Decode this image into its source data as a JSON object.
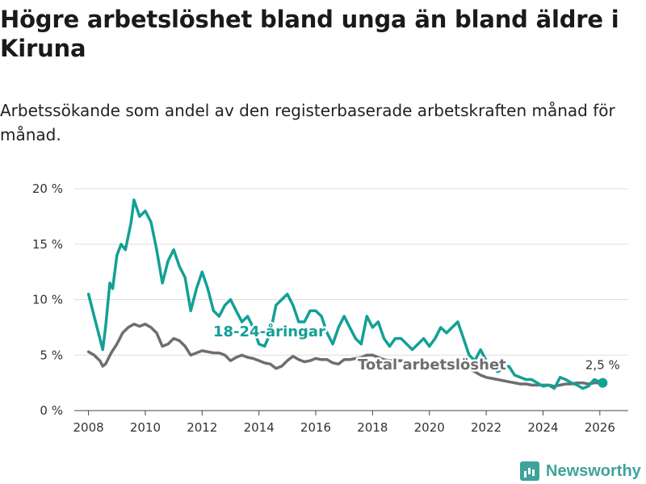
{
  "title": "Högre arbetslöshet bland unga än bland äldre i Kiruna",
  "subtitle": "Arbetssökande som andel av den registerbaserade arbetskraften månad för månad.",
  "brand": "Newsworthy",
  "colors": {
    "youth": "#13a096",
    "total": "#6e6e70",
    "grid": "#dddddd",
    "axis": "#444444"
  },
  "chart_data": {
    "type": "line",
    "title": "Högre arbetslöshet bland unga än bland äldre i Kiruna",
    "xlabel": "",
    "ylabel": "",
    "xlim": [
      2007.5,
      2027
    ],
    "ylim": [
      0,
      20
    ],
    "x_ticks": [
      2008,
      2010,
      2012,
      2014,
      2016,
      2018,
      2020,
      2022,
      2024,
      2026
    ],
    "x_tick_labels": [
      "2008",
      "2010",
      "2012",
      "2014",
      "2016",
      "2018",
      "2020",
      "2022",
      "2024",
      "2026"
    ],
    "y_ticks": [
      0,
      5,
      10,
      15,
      20
    ],
    "y_tick_labels": [
      "0 %",
      "5 %",
      "10 %",
      "15 %",
      "20 %"
    ],
    "end_label": "2,5 %",
    "series": [
      {
        "name": "18-24-åringar",
        "color": "#13a096",
        "x": [
          2008.0,
          2008.2,
          2008.4,
          2008.5,
          2008.6,
          2008.75,
          2008.85,
          2009.0,
          2009.15,
          2009.3,
          2009.5,
          2009.6,
          2009.8,
          2010.0,
          2010.2,
          2010.4,
          2010.6,
          2010.8,
          2011.0,
          2011.2,
          2011.4,
          2011.6,
          2011.8,
          2012.0,
          2012.2,
          2012.4,
          2012.6,
          2012.8,
          2013.0,
          2013.2,
          2013.4,
          2013.6,
          2013.8,
          2014.0,
          2014.2,
          2014.4,
          2014.6,
          2014.8,
          2015.0,
          2015.2,
          2015.4,
          2015.6,
          2015.8,
          2016.0,
          2016.2,
          2016.4,
          2016.6,
          2016.8,
          2017.0,
          2017.2,
          2017.4,
          2017.6,
          2017.8,
          2018.0,
          2018.2,
          2018.4,
          2018.6,
          2018.8,
          2019.0,
          2019.2,
          2019.4,
          2019.6,
          2019.8,
          2020.0,
          2020.2,
          2020.4,
          2020.6,
          2020.8,
          2021.0,
          2021.2,
          2021.4,
          2021.6,
          2021.8,
          2022.0,
          2022.2,
          2022.4,
          2022.6,
          2022.8,
          2023.0,
          2023.2,
          2023.4,
          2023.6,
          2023.8,
          2024.0,
          2024.2,
          2024.4,
          2024.6,
          2024.8,
          2025.0,
          2025.2,
          2025.4,
          2025.6,
          2025.8,
          2026.0,
          2026.1
        ],
        "values": [
          10.5,
          8.5,
          6.5,
          5.5,
          7.5,
          11.5,
          11.0,
          14.0,
          15.0,
          14.5,
          17.0,
          19.0,
          17.5,
          18.0,
          17.0,
          14.5,
          11.5,
          13.5,
          14.5,
          13.0,
          12.0,
          9.0,
          11.0,
          12.5,
          11.0,
          9.0,
          8.5,
          9.5,
          10.0,
          9.0,
          8.0,
          8.5,
          7.5,
          6.0,
          5.8,
          7.0,
          9.5,
          10.0,
          10.5,
          9.5,
          8.0,
          8.0,
          9.0,
          9.0,
          8.5,
          7.0,
          6.0,
          7.5,
          8.5,
          7.5,
          6.5,
          6.0,
          8.5,
          7.5,
          8.0,
          6.5,
          5.8,
          6.5,
          6.5,
          6.0,
          5.5,
          6.0,
          6.5,
          5.8,
          6.5,
          7.5,
          7.0,
          7.5,
          8.0,
          6.5,
          5.0,
          4.5,
          5.5,
          4.5,
          4.0,
          3.5,
          3.8,
          4.0,
          3.2,
          3.0,
          2.8,
          2.8,
          2.5,
          2.2,
          2.3,
          2.0,
          3.0,
          2.8,
          2.5,
          2.3,
          2.0,
          2.2,
          2.8,
          2.6,
          2.5
        ]
      },
      {
        "name": "Total arbetslöshet",
        "color": "#6e6e70",
        "x": [
          2008.0,
          2008.2,
          2008.4,
          2008.5,
          2008.6,
          2008.8,
          2009.0,
          2009.2,
          2009.4,
          2009.6,
          2009.8,
          2010.0,
          2010.2,
          2010.4,
          2010.6,
          2010.8,
          2011.0,
          2011.2,
          2011.4,
          2011.6,
          2011.8,
          2012.0,
          2012.2,
          2012.4,
          2012.6,
          2012.8,
          2013.0,
          2013.2,
          2013.4,
          2013.6,
          2013.8,
          2014.0,
          2014.2,
          2014.4,
          2014.6,
          2014.8,
          2015.0,
          2015.2,
          2015.4,
          2015.6,
          2015.8,
          2016.0,
          2016.2,
          2016.4,
          2016.6,
          2016.8,
          2017.0,
          2017.2,
          2017.4,
          2017.6,
          2017.8,
          2018.0,
          2018.2,
          2018.4,
          2018.6,
          2018.8,
          2019.0,
          2019.2,
          2019.4,
          2019.6,
          2019.8,
          2020.0,
          2020.2,
          2020.4,
          2020.6,
          2020.8,
          2021.0,
          2021.2,
          2021.4,
          2021.6,
          2021.8,
          2022.0,
          2022.2,
          2022.4,
          2022.6,
          2022.8,
          2023.0,
          2023.2,
          2023.4,
          2023.6,
          2023.8,
          2024.0,
          2024.2,
          2024.4,
          2024.6,
          2024.8,
          2025.0,
          2025.2,
          2025.4,
          2025.6,
          2025.8,
          2026.0,
          2026.1
        ],
        "values": [
          5.3,
          5.0,
          4.5,
          4.0,
          4.2,
          5.2,
          6.0,
          7.0,
          7.5,
          7.8,
          7.6,
          7.8,
          7.5,
          7.0,
          5.8,
          6.0,
          6.5,
          6.3,
          5.8,
          5.0,
          5.2,
          5.4,
          5.3,
          5.2,
          5.2,
          5.0,
          4.5,
          4.8,
          5.0,
          4.8,
          4.7,
          4.5,
          4.3,
          4.2,
          3.8,
          4.0,
          4.5,
          4.9,
          4.6,
          4.4,
          4.5,
          4.7,
          4.6,
          4.6,
          4.3,
          4.2,
          4.6,
          4.6,
          4.7,
          4.8,
          5.0,
          5.0,
          4.8,
          4.6,
          4.5,
          4.5,
          4.5,
          4.4,
          4.3,
          4.4,
          4.3,
          4.2,
          4.2,
          4.3,
          4.4,
          4.5,
          4.3,
          4.0,
          3.8,
          3.5,
          3.2,
          3.0,
          2.9,
          2.8,
          2.7,
          2.6,
          2.5,
          2.4,
          2.4,
          2.3,
          2.3,
          2.3,
          2.3,
          2.2,
          2.3,
          2.4,
          2.4,
          2.5,
          2.5,
          2.4,
          2.5,
          2.5,
          2.5
        ]
      }
    ],
    "annotations": [
      "18-24-åringar",
      "Total arbetslöshet"
    ]
  }
}
